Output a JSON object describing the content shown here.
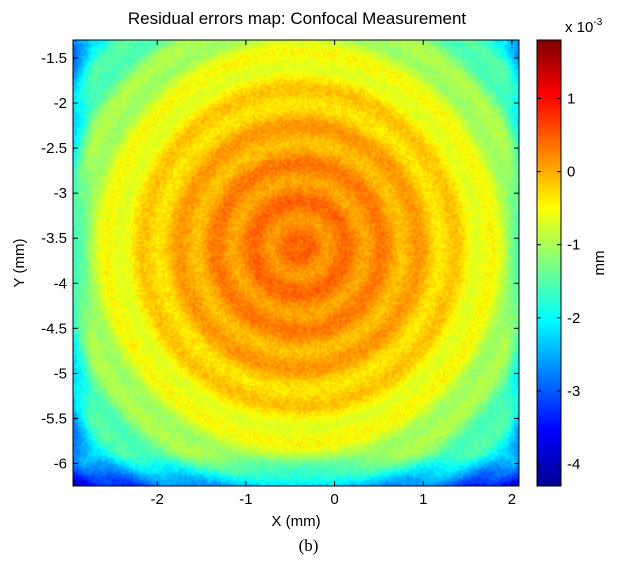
{
  "chart_data": {
    "type": "heatmap",
    "title": "Residual errors map: Confocal Measurement",
    "xlabel": "X (mm)",
    "ylabel": "Y (mm)",
    "xlim": [
      -2.95,
      2.08
    ],
    "ylim": [
      -6.25,
      -1.3
    ],
    "y_reversed": true,
    "x_ticks": [
      -2,
      -1,
      0,
      1,
      2
    ],
    "x_tick_labels": [
      "-2",
      "-1",
      "0",
      "1",
      "2"
    ],
    "y_ticks": [
      -1.5,
      -2,
      -2.5,
      -3,
      -3.5,
      -4,
      -4.5,
      -5,
      -5.5,
      -6
    ],
    "y_tick_labels": [
      "-1.5",
      "-2",
      "-2.5",
      "-3",
      "-3.5",
      "-4",
      "-4.5",
      "-5",
      "-5.5",
      "-6"
    ],
    "colorbar": {
      "label": "mm",
      "exponent_label": "x 10",
      "exponent": "-3",
      "colormap": "jet",
      "clim": [
        -4.3,
        1.8
      ],
      "ticks": [
        1,
        0,
        -1,
        -2,
        -3,
        -4
      ],
      "tick_labels": [
        "1",
        "0",
        "-1",
        "-2",
        "-3",
        "-4"
      ]
    },
    "pattern": {
      "center_x": -0.4,
      "center_y": -3.6,
      "value_center": 0.3,
      "value_edge": -1.0,
      "ring_spacing_mm": 0.42
    }
  },
  "caption": "(b)"
}
